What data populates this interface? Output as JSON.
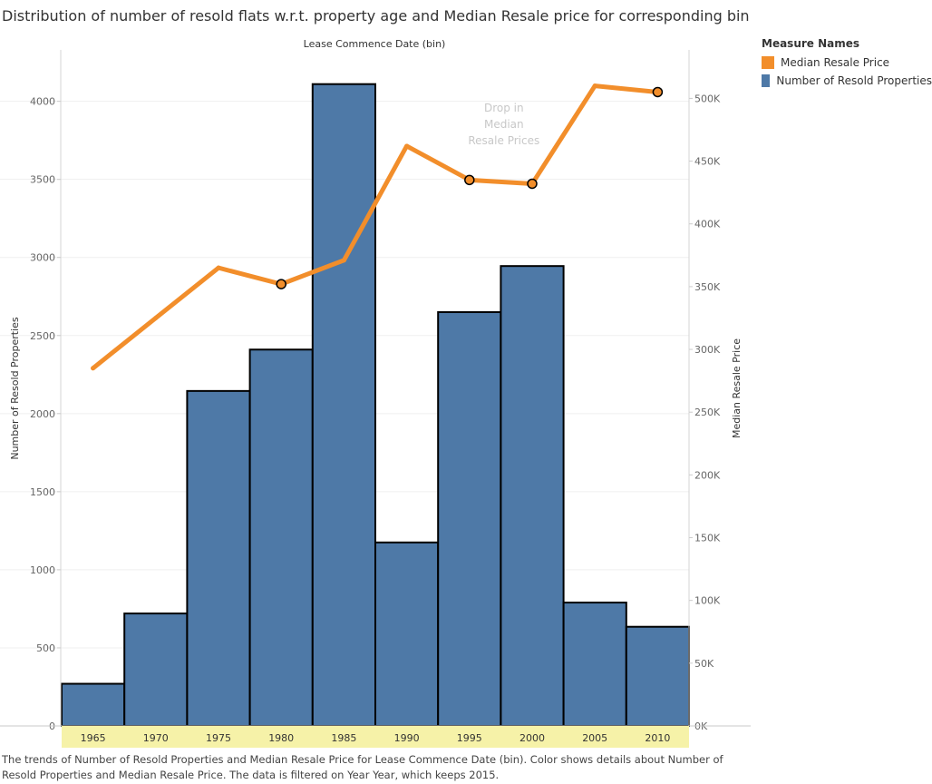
{
  "title": "Distribution of number of resold flats w.r.t. property age and Median Resale price for corresponding bin",
  "legend": {
    "title": "Measure Names",
    "items": [
      {
        "label": "Median Resale Price",
        "color": "#f28e2b"
      },
      {
        "label": "Number of Resold Properties",
        "color": "#4e79a7"
      }
    ]
  },
  "caption": "The trends of Number of Resold Properties and Median Resale Price for Lease Commence Date (bin).  Color shows details about Number of Resold Properties and Median Resale Price. The data is filtered on Year Year, which keeps 2015.",
  "chart_data": {
    "type": "bar",
    "title": "Lease Commence Date (bin)",
    "xlabel": "Lease Commence Date (bin)",
    "ylabel": "Number of Resold Properties",
    "y2label": "Median Resale Price",
    "categories": [
      "1965",
      "1970",
      "1975",
      "1980",
      "1985",
      "1990",
      "1995",
      "2000",
      "2005",
      "2010"
    ],
    "series": [
      {
        "name": "Number of Resold Properties",
        "type": "bar",
        "axis": "left",
        "color": "#4e79a7",
        "values": [
          270,
          720,
          2145,
          2410,
          4110,
          1175,
          2650,
          2945,
          790,
          635
        ]
      },
      {
        "name": "Median Resale Price",
        "type": "line",
        "axis": "right",
        "color": "#f28e2b",
        "values": [
          285000,
          325000,
          365000,
          352000,
          371000,
          462000,
          435000,
          432000,
          510000,
          505000
        ],
        "markers": [
          "1980",
          "1995",
          "2000",
          "2010"
        ]
      }
    ],
    "ylim": [
      0,
      4300
    ],
    "y2lim": [
      0,
      535000
    ],
    "yticks": [
      0,
      500,
      1000,
      1500,
      2000,
      2500,
      3000,
      3500,
      4000
    ],
    "y2ticks": [
      {
        "value": 0,
        "label": "0K"
      },
      {
        "value": 50000,
        "label": "50K"
      },
      {
        "value": 100000,
        "label": "100K"
      },
      {
        "value": 150000,
        "label": "150K"
      },
      {
        "value": 200000,
        "label": "200K"
      },
      {
        "value": 250000,
        "label": "250K"
      },
      {
        "value": 300000,
        "label": "300K"
      },
      {
        "value": 350000,
        "label": "350K"
      },
      {
        "value": 400000,
        "label": "400K"
      },
      {
        "value": 450000,
        "label": "450K"
      },
      {
        "value": 500000,
        "label": "500K"
      }
    ],
    "annotation": {
      "text": [
        "Drop in",
        "Median",
        "Resale Prices"
      ],
      "near": "1995"
    }
  }
}
